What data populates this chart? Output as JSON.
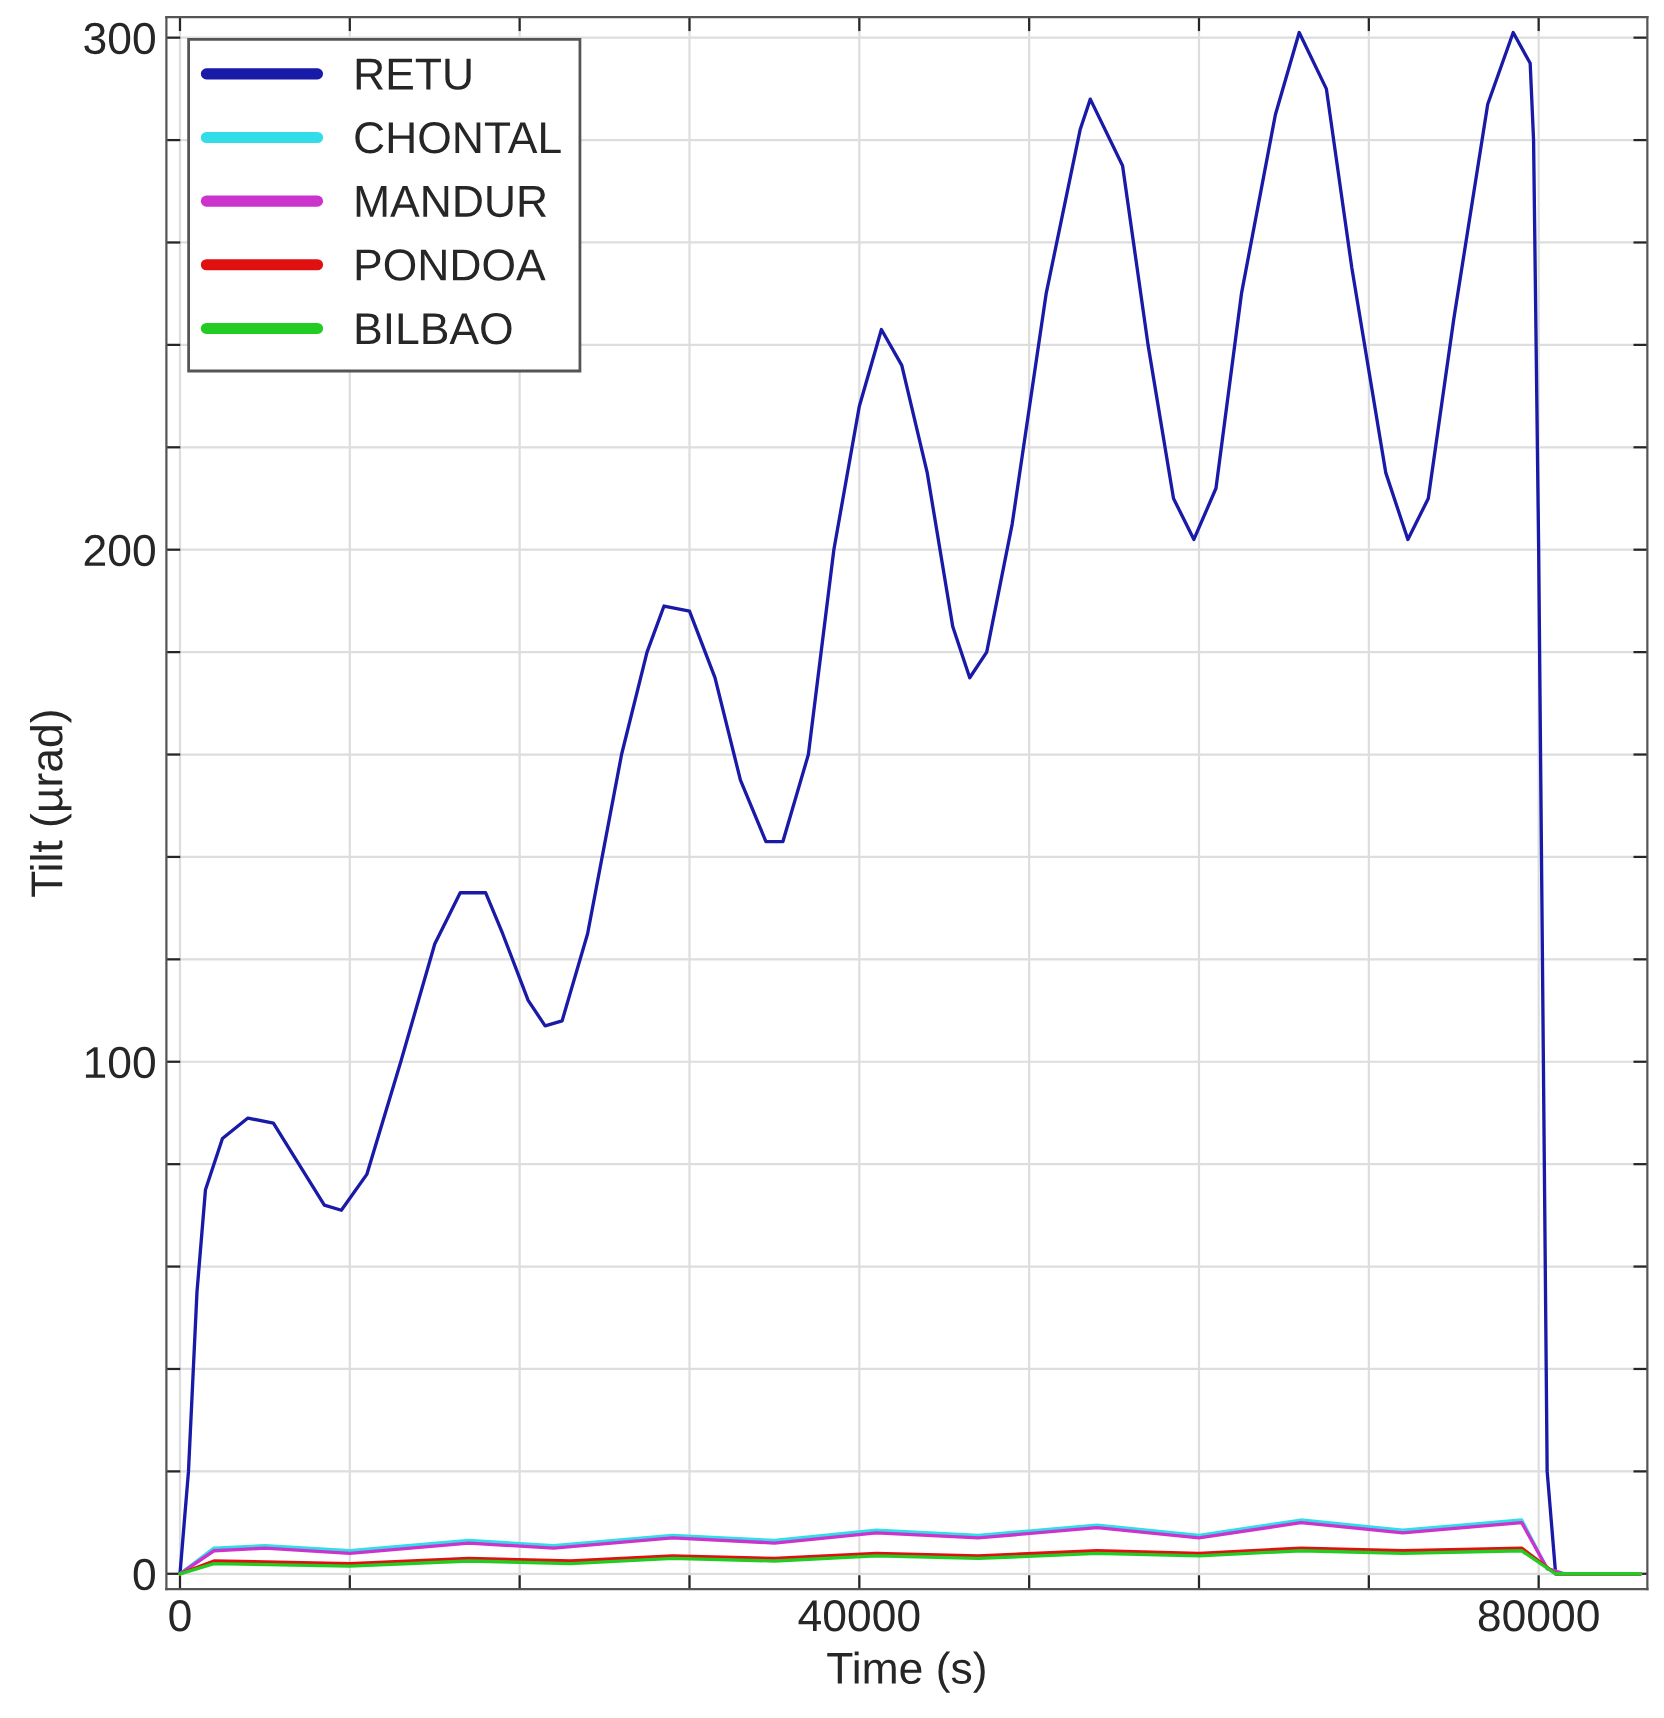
{
  "chart_data": {
    "type": "line",
    "xlabel": "Time (s)",
    "ylabel": "Tilt (µrad)",
    "xlim": [
      -800,
      86400
    ],
    "ylim": [
      -3,
      304
    ],
    "xticks": [
      0,
      {
        "value": 10000,
        "label": null
      },
      {
        "value": 20000,
        "label": null
      },
      {
        "value": 30000,
        "label": null
      },
      40000,
      {
        "value": 50000,
        "label": null
      },
      {
        "value": 60000,
        "label": null
      },
      {
        "value": 70000,
        "label": null
      },
      80000
    ],
    "yticks": [
      0,
      {
        "value": 20,
        "label": null
      },
      {
        "value": 40,
        "label": null
      },
      {
        "value": 60,
        "label": null
      },
      {
        "value": 80,
        "label": null
      },
      100,
      {
        "value": 120,
        "label": null
      },
      {
        "value": 140,
        "label": null
      },
      {
        "value": 160,
        "label": null
      },
      {
        "value": 180,
        "label": null
      },
      200,
      {
        "value": 220,
        "label": null
      },
      {
        "value": 240,
        "label": null
      },
      {
        "value": 260,
        "label": null
      },
      {
        "value": 280,
        "label": null
      },
      300
    ],
    "grid": true,
    "legend": "top left",
    "line_style": "solid",
    "marker": "none",
    "series": [
      {
        "name": "RETU",
        "color": "#1a1aa8",
        "x": [
          0,
          500,
          1000,
          1500,
          2500,
          4000,
          5500,
          7000,
          8500,
          9500,
          11000,
          13000,
          15000,
          16500,
          18000,
          19000,
          20500,
          21500,
          22500,
          24000,
          26000,
          27500,
          28500,
          30000,
          31500,
          33000,
          34500,
          35500,
          37000,
          38500,
          40000,
          41300,
          42500,
          44000,
          45500,
          46500,
          47500,
          49000,
          51000,
          53000,
          53600,
          55500,
          57000,
          58500,
          59700,
          61000,
          62500,
          64500,
          65900,
          67500,
          69000,
          71000,
          72300,
          73500,
          75000,
          77000,
          78500,
          79500,
          79700,
          80000,
          80500,
          81000,
          86000
        ],
        "values": [
          0,
          20,
          55,
          75,
          85,
          89,
          88,
          80,
          72,
          71,
          78,
          100,
          123,
          133,
          133,
          125,
          112,
          107,
          108,
          125,
          160,
          180,
          189,
          188,
          175,
          155,
          143,
          143,
          160,
          200,
          228,
          243,
          236,
          215,
          185,
          175,
          180,
          205,
          250,
          282,
          288,
          275,
          240,
          210,
          202,
          212,
          250,
          285,
          301,
          290,
          255,
          215,
          202,
          210,
          245,
          287,
          301,
          295,
          280,
          200,
          20,
          0,
          0
        ]
      },
      {
        "name": "CHONTAL",
        "color": "#33dde8",
        "x": [
          0,
          2000,
          5000,
          10000,
          17000,
          22000,
          29000,
          35000,
          41000,
          47000,
          54000,
          60000,
          66000,
          72000,
          79000,
          80500,
          81500,
          86000
        ],
        "values": [
          0,
          5,
          5.5,
          4.5,
          6.5,
          5.5,
          7.5,
          6.5,
          8.5,
          7.5,
          9.5,
          7.5,
          10.5,
          8.5,
          10.5,
          1,
          0,
          0
        ]
      },
      {
        "name": "MANDUR",
        "color": "#cc33cc",
        "x": [
          0,
          2000,
          5000,
          10000,
          17000,
          22000,
          29000,
          35000,
          41000,
          47000,
          54000,
          60000,
          66000,
          72000,
          79000,
          80500,
          81500,
          86000
        ],
        "values": [
          0,
          4.5,
          5,
          4,
          6,
          5,
          7,
          6,
          8,
          7,
          9,
          7,
          10,
          8,
          10,
          1,
          0,
          0
        ]
      },
      {
        "name": "PONDOA",
        "color": "#e01010",
        "x": [
          0,
          2000,
          10000,
          17000,
          23000,
          29000,
          35000,
          41000,
          47000,
          54000,
          60000,
          66000,
          72000,
          79000,
          81000,
          86000
        ],
        "values": [
          0,
          2.5,
          2,
          3,
          2.5,
          3.5,
          3,
          4,
          3.5,
          4.5,
          4,
          5,
          4.5,
          5,
          0,
          0
        ]
      },
      {
        "name": "BILBAO",
        "color": "#22cc22",
        "x": [
          0,
          2000,
          10000,
          17000,
          23000,
          29000,
          35000,
          41000,
          47000,
          54000,
          60000,
          66000,
          72000,
          79000,
          81000,
          86000
        ],
        "values": [
          0,
          2,
          1.5,
          2.5,
          2,
          3,
          2.5,
          3.5,
          3,
          4,
          3.5,
          4.5,
          4,
          4.5,
          0,
          0
        ]
      }
    ]
  }
}
